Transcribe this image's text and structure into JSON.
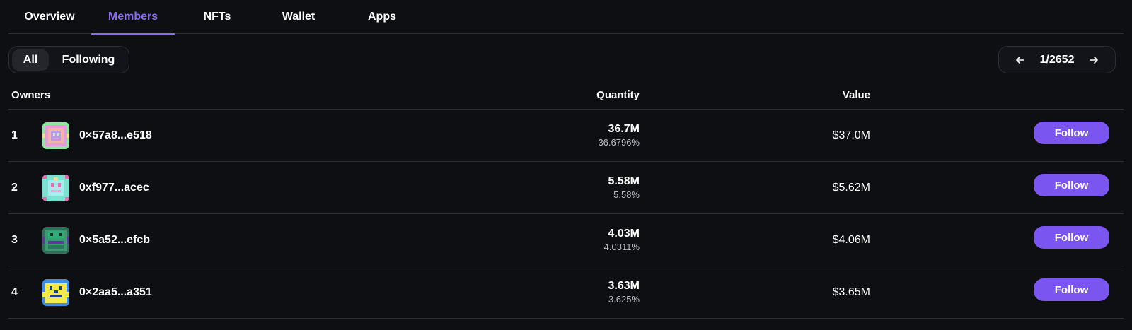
{
  "tabs": [
    {
      "label": "Overview"
    },
    {
      "label": "Members"
    },
    {
      "label": "NFTs"
    },
    {
      "label": "Wallet"
    },
    {
      "label": "Apps"
    }
  ],
  "active_tab": "Members",
  "filter": {
    "options": [
      "All",
      "Following"
    ],
    "selected": "All"
  },
  "pager": {
    "text": "1/2652",
    "prev_icon": "arrow-left-icon",
    "next_icon": "arrow-right-icon"
  },
  "table": {
    "headers": {
      "owners": "Owners",
      "quantity": "Quantity",
      "value": "Value"
    },
    "rows": [
      {
        "rank": "1",
        "address": "0×57a8...e518",
        "quantity": "36.7M",
        "percent": "36.6796%",
        "value": "$37.0M",
        "action": "Follow"
      },
      {
        "rank": "2",
        "address": "0xf977...acec",
        "quantity": "5.58M",
        "percent": "5.58%",
        "value": "$5.62M",
        "action": "Follow"
      },
      {
        "rank": "3",
        "address": "0×5a52...efcb",
        "quantity": "4.03M",
        "percent": "4.0311%",
        "value": "$4.06M",
        "action": "Follow"
      },
      {
        "rank": "4",
        "address": "0×2aa5...a351",
        "quantity": "3.63M",
        "percent": "3.625%",
        "value": "$3.65M",
        "action": "Follow"
      }
    ]
  },
  "colors": {
    "background": "#0d0f13",
    "accent": "#8b6cf0",
    "button": "#7b55f0",
    "border": "#2a2d33"
  }
}
